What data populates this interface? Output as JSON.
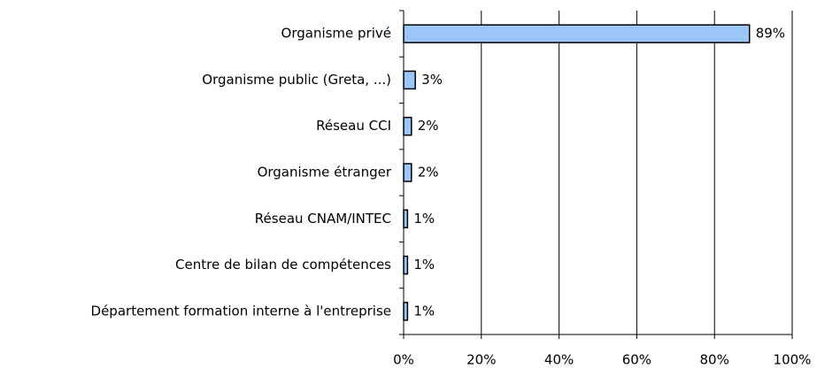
{
  "chart_data": {
    "type": "bar",
    "orientation": "horizontal",
    "categories": [
      "Organisme privé",
      "Organisme public (Greta, ...)",
      "Réseau CCI",
      "Organisme étranger",
      "Réseau CNAM/INTEC",
      "Centre de bilan de compétences",
      "Département formation interne à l'entreprise"
    ],
    "values": [
      89,
      3,
      2,
      2,
      1,
      1,
      1
    ],
    "value_labels": [
      "89%",
      "3%",
      "2%",
      "2%",
      "1%",
      "1%",
      "1%"
    ],
    "color": "#9cc6f7",
    "xlim": [
      0,
      100
    ],
    "xticks": [
      {
        "value": 0,
        "label": "0%"
      },
      {
        "value": 20,
        "label": "20%"
      },
      {
        "value": 40,
        "label": "40%"
      },
      {
        "value": 60,
        "label": "60%"
      },
      {
        "value": 80,
        "label": "80%"
      },
      {
        "value": 100,
        "label": "100%"
      }
    ],
    "grid": true
  }
}
